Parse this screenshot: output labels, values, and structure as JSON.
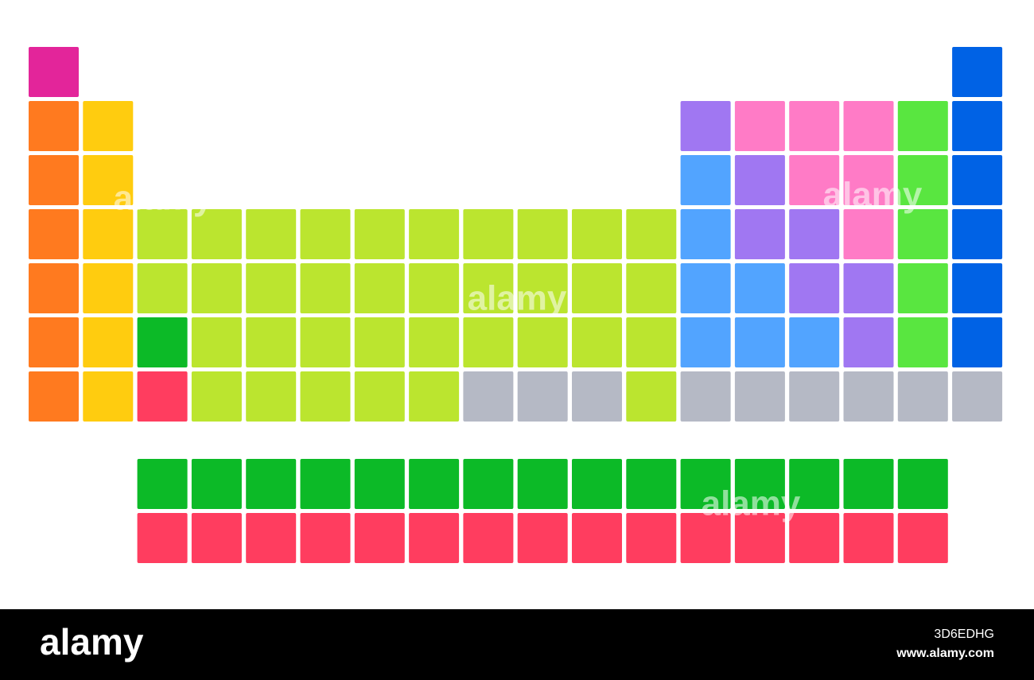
{
  "footer": {
    "logo": "alamy",
    "image_id": "3D6EDHG",
    "url": "www.alamy.com"
  }
}
